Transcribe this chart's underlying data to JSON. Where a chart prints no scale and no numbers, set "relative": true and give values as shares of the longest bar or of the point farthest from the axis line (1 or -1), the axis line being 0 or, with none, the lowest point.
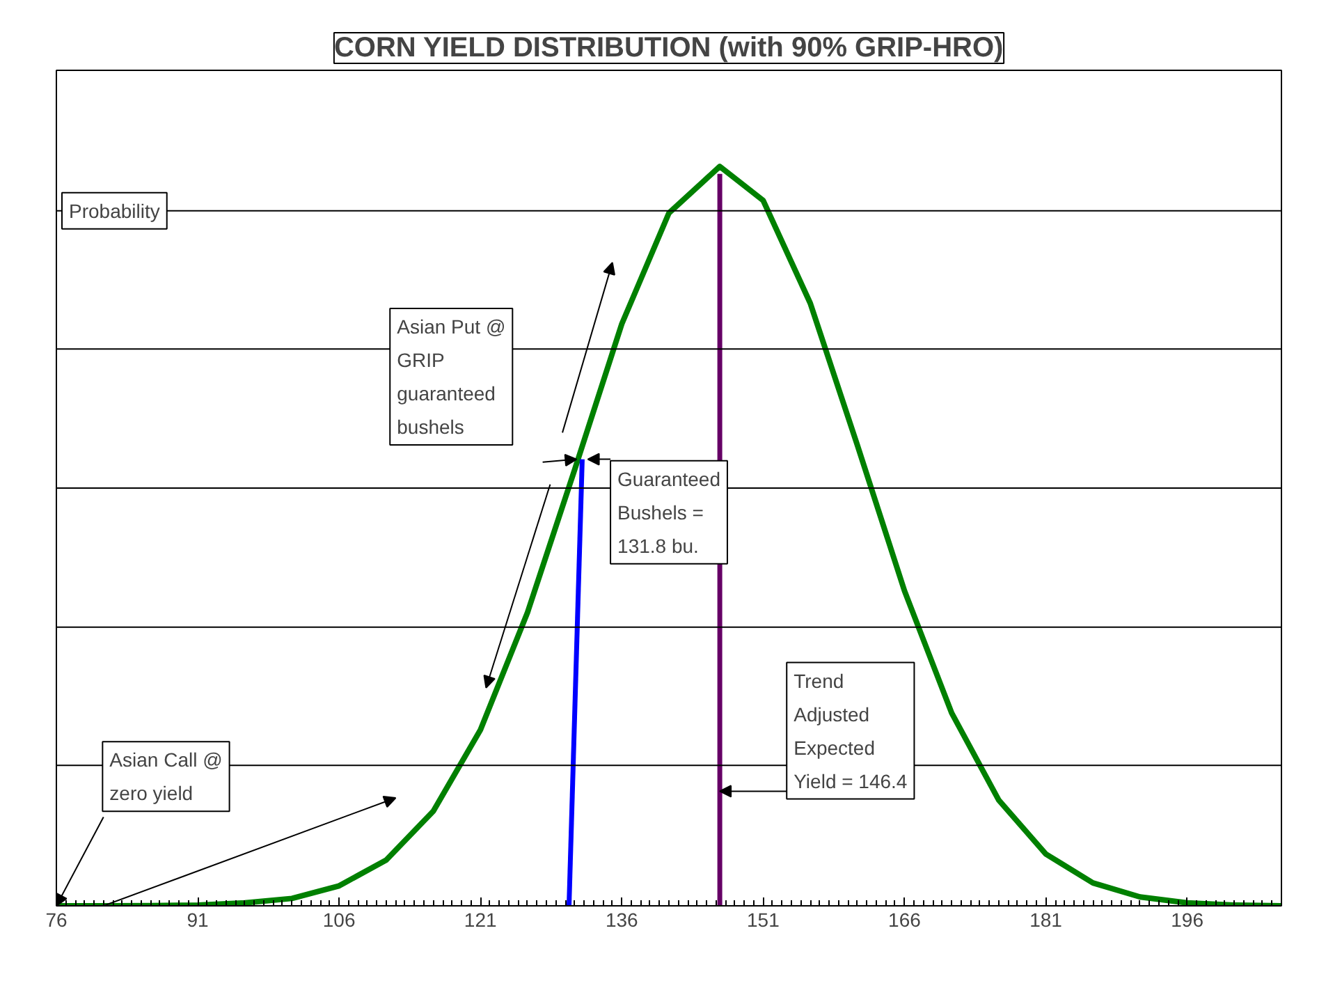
{
  "chart_data": {
    "type": "line",
    "title": "CORN YIELD DISTRIBUTION (with 90% GRIP-HRO)",
    "ylabel": "Probability",
    "relative": true,
    "xlim": [
      76,
      206
    ],
    "xticks": [
      76,
      91,
      106,
      121,
      136,
      151,
      166,
      181,
      196
    ],
    "series": [
      {
        "color": "#008000",
        "x": [
          76,
          81,
          86,
          91,
          96,
          101,
          106,
          111,
          116,
          121,
          126,
          131,
          136,
          141,
          146.4,
          151,
          156,
          161,
          166,
          171,
          176,
          181,
          186,
          191,
          196,
          201,
          206
        ],
        "values": [
          0,
          0.0001,
          0.0003,
          0.001,
          0.004,
          0.01,
          0.027,
          0.062,
          0.128,
          0.238,
          0.397,
          0.59,
          0.787,
          0.937,
          1,
          0.954,
          0.815,
          0.623,
          0.426,
          0.261,
          0.143,
          0.07,
          0.031,
          0.012,
          0.004,
          0.001,
          0
        ]
      },
      {
        "color": "#0000ff",
        "x": [
          130.4,
          131.8
        ],
        "values": [
          0,
          0.604
        ]
      },
      {
        "color": "#660066",
        "x": [
          146.4,
          146.4
        ],
        "values": [
          0,
          0.99
        ]
      }
    ],
    "ref_lines": [
      {
        "axis": "y",
        "value": 0.19,
        "color": "#000000"
      },
      {
        "axis": "y",
        "value": 0.377,
        "color": "#000000"
      },
      {
        "axis": "y",
        "value": 0.565,
        "color": "#000000"
      },
      {
        "axis": "y",
        "value": 0.753,
        "color": "#000000"
      },
      {
        "axis": "y",
        "value": 0.94,
        "color": "#000000"
      }
    ],
    "annotations": [
      "Asian Put @ GRIP guaranteed bushels",
      {
        "text": "Guaranteed Bushels = 131.8 bu.",
        "x": 131.8,
        "y": 0.604
      },
      {
        "text": "Trend Adjusted Expected Yield = 146.4",
        "x": 146.4,
        "y": 0.155
      },
      {
        "text": "Asian Call @ zero yield",
        "x": 76,
        "y": 0
      }
    ]
  }
}
